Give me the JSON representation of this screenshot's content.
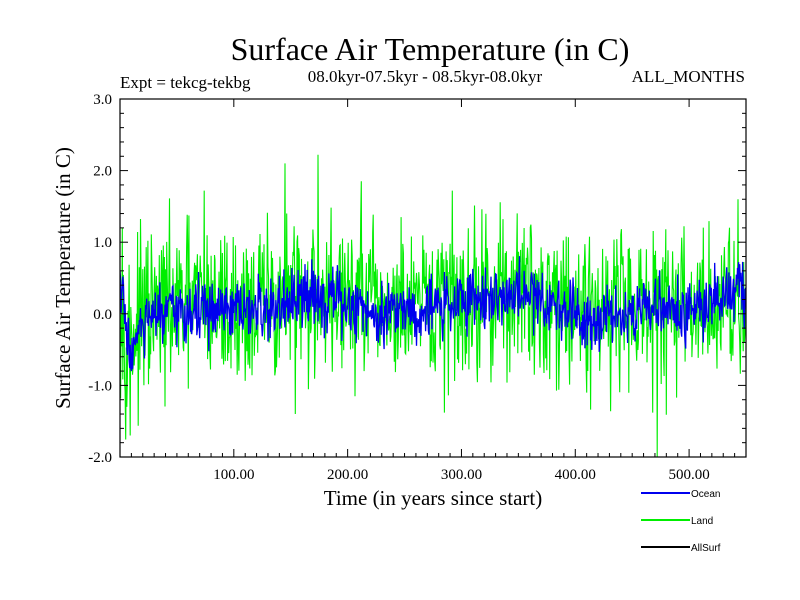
{
  "chart_data": {
    "type": "line",
    "title": "Surface Air Temperature (in C)",
    "subtitle_left": "Expt = tekcg-tekbg",
    "subtitle_center": "08.0kyr-07.5kyr - 08.5kyr-08.0kyr",
    "subtitle_right": "ALL_MONTHS",
    "xlabel": "Time (in years since start)",
    "ylabel": "Surface Air Temperature (in C)",
    "xlim": [
      0,
      550
    ],
    "ylim": [
      -2.0,
      3.0
    ],
    "xticks": [
      100,
      200,
      300,
      400,
      500
    ],
    "xtick_labels": [
      "100.00",
      "200.00",
      "300.00",
      "400.00",
      "500.00"
    ],
    "yticks": [
      -2.0,
      -1.0,
      0.0,
      1.0,
      2.0,
      3.0
    ],
    "ytick_labels": [
      "-2.0",
      "-1.0",
      "0.0",
      "1.0",
      "2.0",
      "3.0"
    ],
    "legend_position": "bottom-right, below plot",
    "series": [
      {
        "name": "Land",
        "color": "#00ee00",
        "baseline": [
          [
            0,
            0.0
          ],
          [
            10,
            -0.3
          ],
          [
            20,
            -0.1
          ],
          [
            40,
            0.05
          ],
          [
            70,
            0.15
          ],
          [
            100,
            0.05
          ],
          [
            130,
            0.15
          ],
          [
            170,
            0.25
          ],
          [
            200,
            0.2
          ],
          [
            230,
            0.05
          ],
          [
            260,
            0.0
          ],
          [
            290,
            0.2
          ],
          [
            320,
            0.25
          ],
          [
            350,
            0.3
          ],
          [
            380,
            0.2
          ],
          [
            410,
            0.1
          ],
          [
            440,
            0.15
          ],
          [
            470,
            0.1
          ],
          [
            500,
            0.05
          ],
          [
            530,
            0.2
          ],
          [
            550,
            0.15
          ]
        ],
        "amplitude": 0.55,
        "extremes": [
          [
            2,
            1.2
          ],
          [
            6,
            -1.3
          ],
          [
            9,
            -1.7
          ],
          [
            74,
            1.72
          ],
          [
            145,
            2.1
          ],
          [
            154,
            -1.4
          ],
          [
            174,
            2.22
          ],
          [
            212,
            1.85
          ],
          [
            285,
            -1.38
          ],
          [
            292,
            1.72
          ],
          [
            410,
            -1.1
          ],
          [
            468,
            -1.38
          ],
          [
            472,
            -2.0
          ],
          [
            543,
            1.6
          ]
        ]
      },
      {
        "name": "Ocean",
        "color": "#0000ee",
        "baseline": [
          [
            0,
            0.45
          ],
          [
            4,
            0.0
          ],
          [
            9,
            -0.55
          ],
          [
            14,
            -0.35
          ],
          [
            22,
            -0.15
          ],
          [
            30,
            -0.05
          ],
          [
            50,
            0.0
          ],
          [
            70,
            0.05
          ],
          [
            90,
            0.0
          ],
          [
            110,
            0.02
          ],
          [
            130,
            0.05
          ],
          [
            150,
            0.1
          ],
          [
            170,
            0.3
          ],
          [
            185,
            0.2
          ],
          [
            200,
            0.1
          ],
          [
            215,
            0.05
          ],
          [
            230,
            0.0
          ],
          [
            245,
            0.15
          ],
          [
            260,
            0.0
          ],
          [
            280,
            0.1
          ],
          [
            300,
            0.2
          ],
          [
            320,
            0.25
          ],
          [
            340,
            0.2
          ],
          [
            355,
            0.3
          ],
          [
            370,
            0.2
          ],
          [
            390,
            0.1
          ],
          [
            410,
            -0.05
          ],
          [
            430,
            0.0
          ],
          [
            450,
            0.05
          ],
          [
            470,
            0.1
          ],
          [
            490,
            0.0
          ],
          [
            510,
            0.1
          ],
          [
            530,
            0.25
          ],
          [
            545,
            0.35
          ],
          [
            550,
            0.1
          ]
        ],
        "amplitude": 0.22,
        "extremes": [
          [
            10,
            -0.8
          ],
          [
            170,
            0.6
          ],
          [
            545,
            0.45
          ]
        ]
      },
      {
        "name": "AllSurf",
        "color": "#000000",
        "baseline": [
          [
            0,
            0.3
          ],
          [
            9,
            -0.4
          ],
          [
            20,
            -0.1
          ],
          [
            550,
            0.1
          ]
        ],
        "amplitude": 0.0,
        "hidden_behind_other_series": true,
        "extremes": []
      }
    ]
  }
}
